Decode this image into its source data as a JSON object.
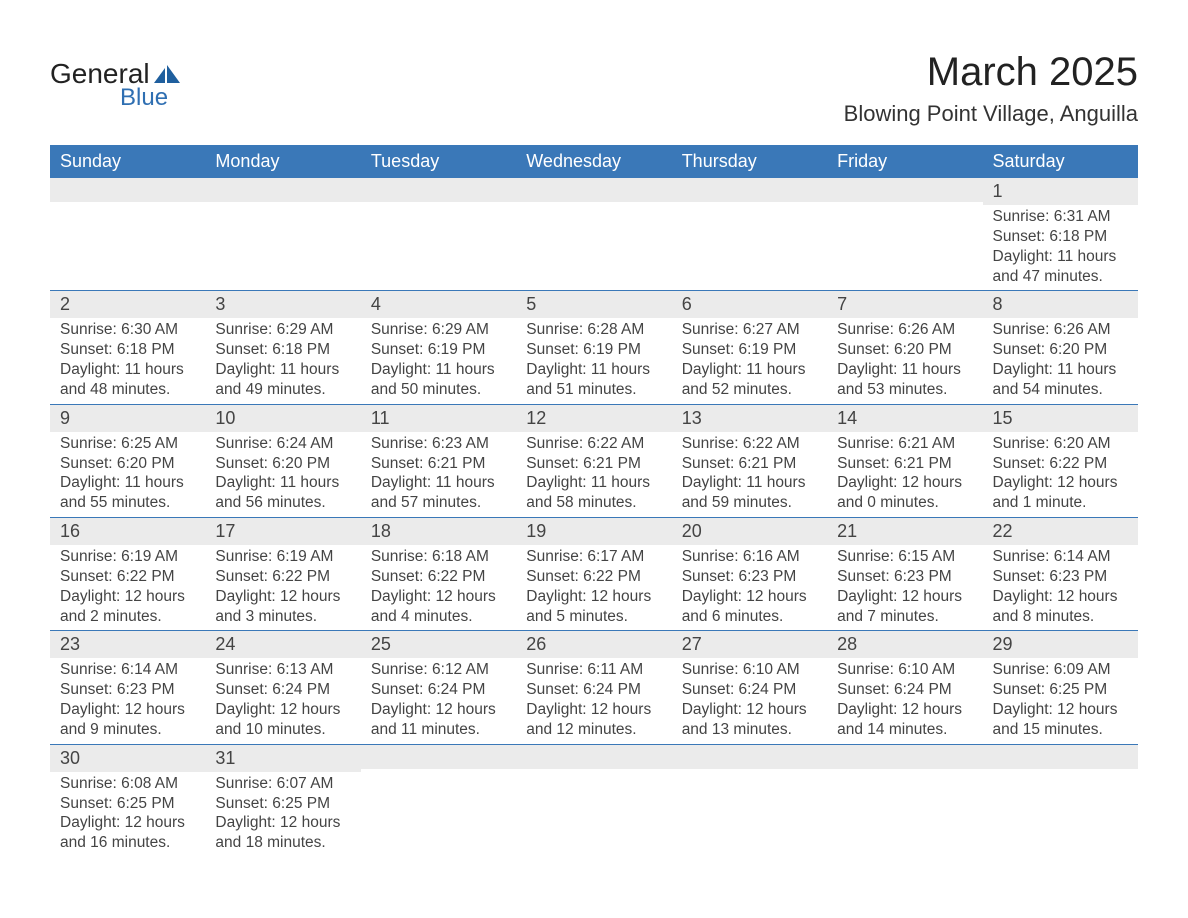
{
  "logo": {
    "word1": "General",
    "word2": "Blue",
    "icon_color": "#1f5f9e",
    "text_color1": "#222222",
    "text_color2": "#2f6fb2"
  },
  "header": {
    "month_title": "March 2025",
    "location": "Blowing Point Village, Anguilla"
  },
  "colors": {
    "header_bg": "#3a78b8",
    "header_text": "#ffffff",
    "row_border": "#3a78b8",
    "daynum_bg": "#ebebeb",
    "body_text": "#444444",
    "page_bg": "#ffffff"
  },
  "typography": {
    "body_font": "Arial",
    "month_title_size": 40,
    "location_size": 22,
    "dayname_size": 18,
    "daynum_size": 18,
    "detail_size": 15.5
  },
  "calendar": {
    "type": "table",
    "day_names": [
      "Sunday",
      "Monday",
      "Tuesday",
      "Wednesday",
      "Thursday",
      "Friday",
      "Saturday"
    ],
    "weeks": [
      [
        null,
        null,
        null,
        null,
        null,
        null,
        {
          "num": "1",
          "sunrise": "Sunrise: 6:31 AM",
          "sunset": "Sunset: 6:18 PM",
          "daylight": "Daylight: 11 hours and 47 minutes."
        }
      ],
      [
        {
          "num": "2",
          "sunrise": "Sunrise: 6:30 AM",
          "sunset": "Sunset: 6:18 PM",
          "daylight": "Daylight: 11 hours and 48 minutes."
        },
        {
          "num": "3",
          "sunrise": "Sunrise: 6:29 AM",
          "sunset": "Sunset: 6:18 PM",
          "daylight": "Daylight: 11 hours and 49 minutes."
        },
        {
          "num": "4",
          "sunrise": "Sunrise: 6:29 AM",
          "sunset": "Sunset: 6:19 PM",
          "daylight": "Daylight: 11 hours and 50 minutes."
        },
        {
          "num": "5",
          "sunrise": "Sunrise: 6:28 AM",
          "sunset": "Sunset: 6:19 PM",
          "daylight": "Daylight: 11 hours and 51 minutes."
        },
        {
          "num": "6",
          "sunrise": "Sunrise: 6:27 AM",
          "sunset": "Sunset: 6:19 PM",
          "daylight": "Daylight: 11 hours and 52 minutes."
        },
        {
          "num": "7",
          "sunrise": "Sunrise: 6:26 AM",
          "sunset": "Sunset: 6:20 PM",
          "daylight": "Daylight: 11 hours and 53 minutes."
        },
        {
          "num": "8",
          "sunrise": "Sunrise: 6:26 AM",
          "sunset": "Sunset: 6:20 PM",
          "daylight": "Daylight: 11 hours and 54 minutes."
        }
      ],
      [
        {
          "num": "9",
          "sunrise": "Sunrise: 6:25 AM",
          "sunset": "Sunset: 6:20 PM",
          "daylight": "Daylight: 11 hours and 55 minutes."
        },
        {
          "num": "10",
          "sunrise": "Sunrise: 6:24 AM",
          "sunset": "Sunset: 6:20 PM",
          "daylight": "Daylight: 11 hours and 56 minutes."
        },
        {
          "num": "11",
          "sunrise": "Sunrise: 6:23 AM",
          "sunset": "Sunset: 6:21 PM",
          "daylight": "Daylight: 11 hours and 57 minutes."
        },
        {
          "num": "12",
          "sunrise": "Sunrise: 6:22 AM",
          "sunset": "Sunset: 6:21 PM",
          "daylight": "Daylight: 11 hours and 58 minutes."
        },
        {
          "num": "13",
          "sunrise": "Sunrise: 6:22 AM",
          "sunset": "Sunset: 6:21 PM",
          "daylight": "Daylight: 11 hours and 59 minutes."
        },
        {
          "num": "14",
          "sunrise": "Sunrise: 6:21 AM",
          "sunset": "Sunset: 6:21 PM",
          "daylight": "Daylight: 12 hours and 0 minutes."
        },
        {
          "num": "15",
          "sunrise": "Sunrise: 6:20 AM",
          "sunset": "Sunset: 6:22 PM",
          "daylight": "Daylight: 12 hours and 1 minute."
        }
      ],
      [
        {
          "num": "16",
          "sunrise": "Sunrise: 6:19 AM",
          "sunset": "Sunset: 6:22 PM",
          "daylight": "Daylight: 12 hours and 2 minutes."
        },
        {
          "num": "17",
          "sunrise": "Sunrise: 6:19 AM",
          "sunset": "Sunset: 6:22 PM",
          "daylight": "Daylight: 12 hours and 3 minutes."
        },
        {
          "num": "18",
          "sunrise": "Sunrise: 6:18 AM",
          "sunset": "Sunset: 6:22 PM",
          "daylight": "Daylight: 12 hours and 4 minutes."
        },
        {
          "num": "19",
          "sunrise": "Sunrise: 6:17 AM",
          "sunset": "Sunset: 6:22 PM",
          "daylight": "Daylight: 12 hours and 5 minutes."
        },
        {
          "num": "20",
          "sunrise": "Sunrise: 6:16 AM",
          "sunset": "Sunset: 6:23 PM",
          "daylight": "Daylight: 12 hours and 6 minutes."
        },
        {
          "num": "21",
          "sunrise": "Sunrise: 6:15 AM",
          "sunset": "Sunset: 6:23 PM",
          "daylight": "Daylight: 12 hours and 7 minutes."
        },
        {
          "num": "22",
          "sunrise": "Sunrise: 6:14 AM",
          "sunset": "Sunset: 6:23 PM",
          "daylight": "Daylight: 12 hours and 8 minutes."
        }
      ],
      [
        {
          "num": "23",
          "sunrise": "Sunrise: 6:14 AM",
          "sunset": "Sunset: 6:23 PM",
          "daylight": "Daylight: 12 hours and 9 minutes."
        },
        {
          "num": "24",
          "sunrise": "Sunrise: 6:13 AM",
          "sunset": "Sunset: 6:24 PM",
          "daylight": "Daylight: 12 hours and 10 minutes."
        },
        {
          "num": "25",
          "sunrise": "Sunrise: 6:12 AM",
          "sunset": "Sunset: 6:24 PM",
          "daylight": "Daylight: 12 hours and 11 minutes."
        },
        {
          "num": "26",
          "sunrise": "Sunrise: 6:11 AM",
          "sunset": "Sunset: 6:24 PM",
          "daylight": "Daylight: 12 hours and 12 minutes."
        },
        {
          "num": "27",
          "sunrise": "Sunrise: 6:10 AM",
          "sunset": "Sunset: 6:24 PM",
          "daylight": "Daylight: 12 hours and 13 minutes."
        },
        {
          "num": "28",
          "sunrise": "Sunrise: 6:10 AM",
          "sunset": "Sunset: 6:24 PM",
          "daylight": "Daylight: 12 hours and 14 minutes."
        },
        {
          "num": "29",
          "sunrise": "Sunrise: 6:09 AM",
          "sunset": "Sunset: 6:25 PM",
          "daylight": "Daylight: 12 hours and 15 minutes."
        }
      ],
      [
        {
          "num": "30",
          "sunrise": "Sunrise: 6:08 AM",
          "sunset": "Sunset: 6:25 PM",
          "daylight": "Daylight: 12 hours and 16 minutes."
        },
        {
          "num": "31",
          "sunrise": "Sunrise: 6:07 AM",
          "sunset": "Sunset: 6:25 PM",
          "daylight": "Daylight: 12 hours and 18 minutes."
        },
        null,
        null,
        null,
        null,
        null
      ]
    ]
  }
}
